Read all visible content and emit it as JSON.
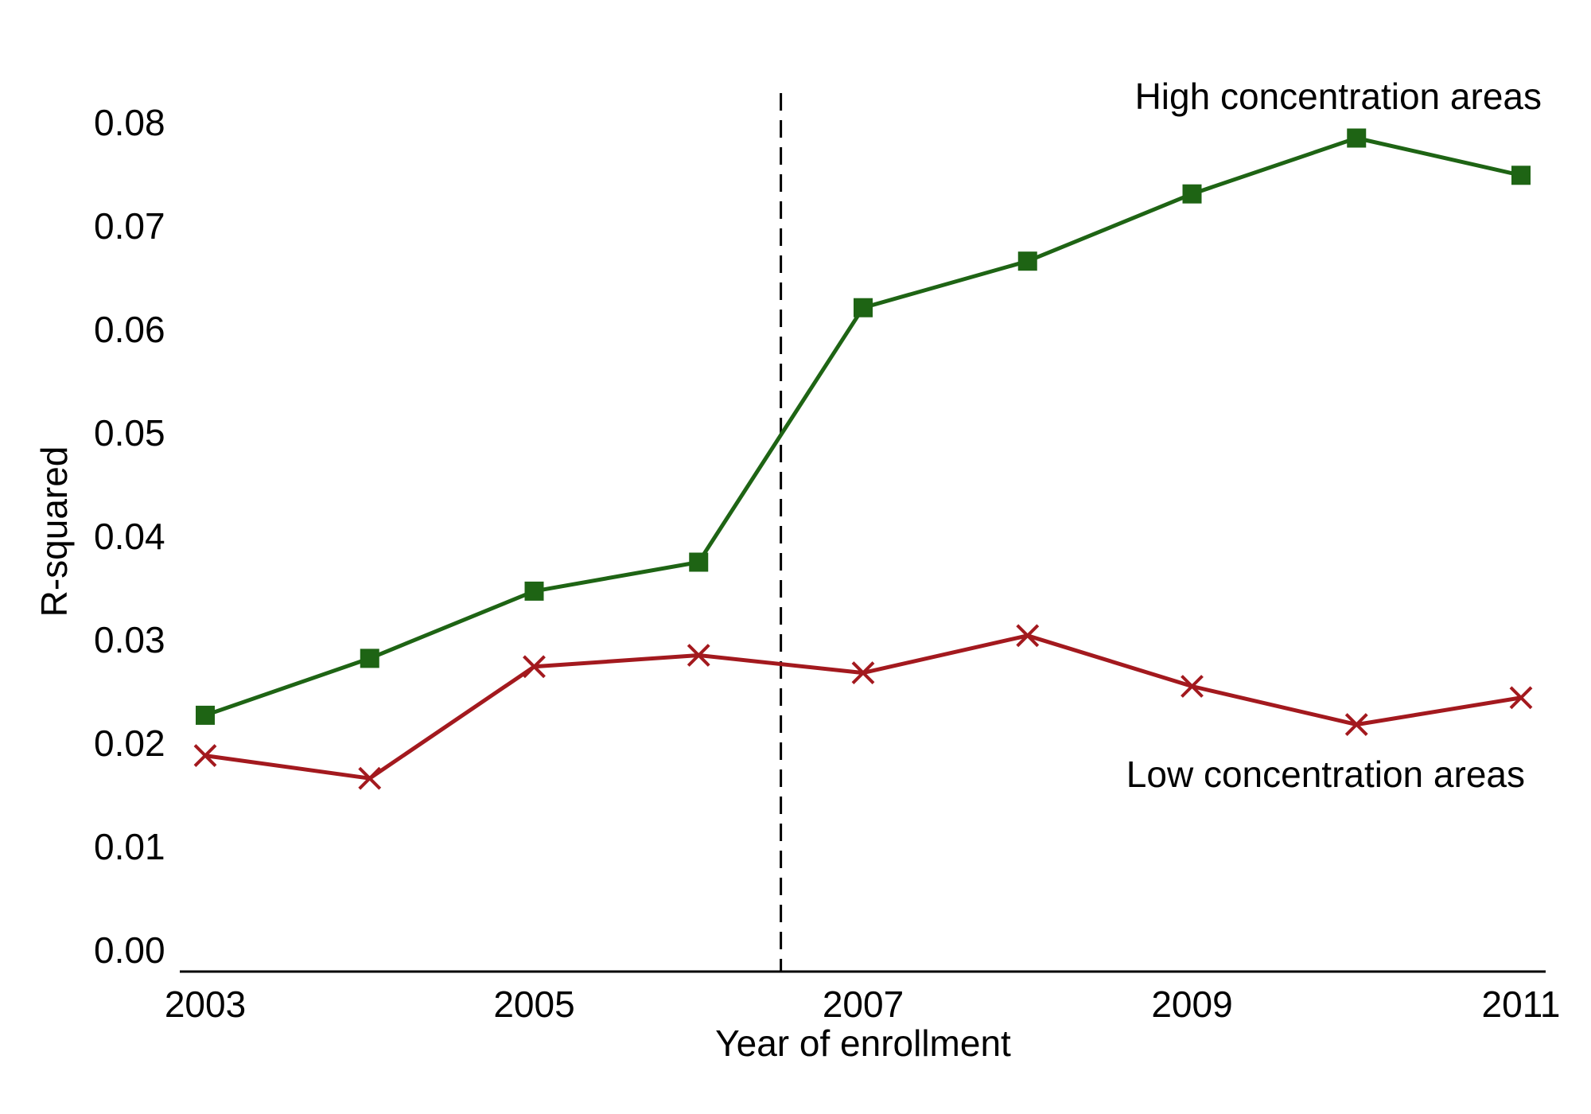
{
  "chart_data": {
    "type": "line",
    "title": "",
    "xlabel": "Year of enrollment",
    "ylabel": "R-squared",
    "x": [
      2003,
      2004,
      2005,
      2006,
      2007,
      2008,
      2009,
      2010,
      2011
    ],
    "x_ticks": [
      "2003",
      "2005",
      "2007",
      "2009",
      "2011"
    ],
    "y_ticks": [
      "0.00",
      "0.01",
      "0.02",
      "0.03",
      "0.04",
      "0.05",
      "0.06",
      "0.07",
      "0.08"
    ],
    "xlim": [
      2003,
      2011
    ],
    "ylim": [
      0,
      0.08
    ],
    "grid": false,
    "legend": "none",
    "reference_line": {
      "x": 2006.5,
      "style": "dashed",
      "color": "#000000"
    },
    "series": [
      {
        "label": "High concentration areas",
        "color": "#1e6414",
        "marker": "square",
        "values": [
          0.0227,
          0.0282,
          0.0347,
          0.0375,
          0.0621,
          0.0666,
          0.0731,
          0.0785,
          0.0749
        ]
      },
      {
        "label": "Low concentration areas",
        "color": "#a3191e",
        "marker": "x",
        "values": [
          0.0188,
          0.0166,
          0.0274,
          0.0285,
          0.0268,
          0.0304,
          0.0255,
          0.0218,
          0.0244
        ]
      }
    ]
  }
}
